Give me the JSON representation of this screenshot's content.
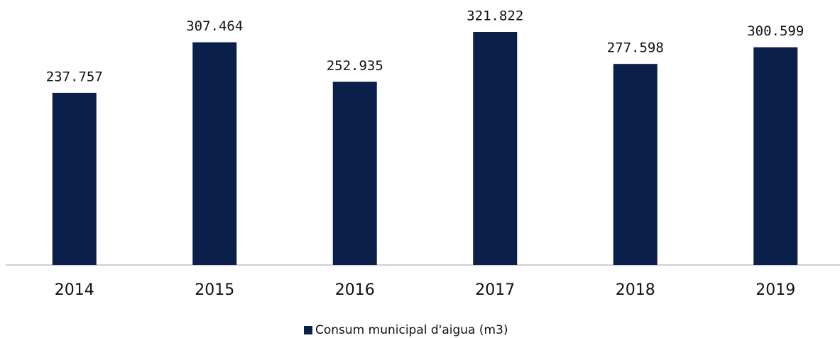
{
  "chart_data": {
    "type": "bar",
    "categories": [
      "2014",
      "2015",
      "2016",
      "2017",
      "2018",
      "2019"
    ],
    "series": [
      {
        "name": "Consum municipal d'aigua (m3)",
        "color": "#0b1f4b",
        "values": [
          237757,
          307464,
          252935,
          321822,
          277598,
          300599
        ],
        "value_labels": [
          "237.757",
          "307.464",
          "252.935",
          "321.822",
          "277.598",
          "300.599"
        ]
      }
    ],
    "legend": "bottom",
    "grid": false
  }
}
